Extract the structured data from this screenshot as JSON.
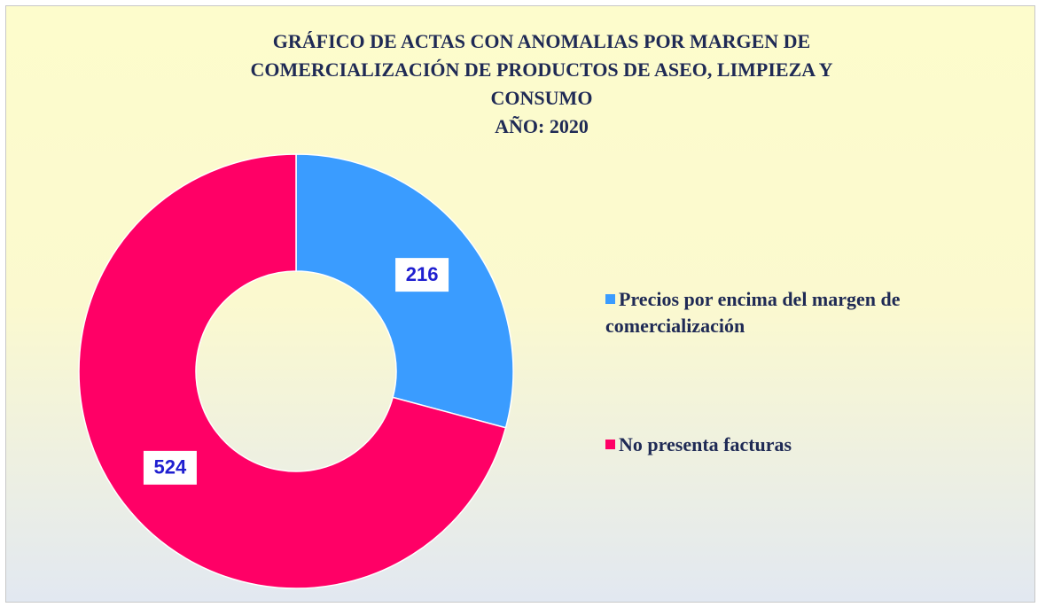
{
  "chart_data": {
    "type": "donut",
    "title": [
      "GRÁFICO DE ACTAS CON ANOMALIAS POR  MARGEN DE",
      "COMERCIALIZACIÓN DE PRODUCTOS DE ASEO, LIMPIEZA Y",
      "CONSUMO"
    ],
    "subtitle": "AÑO: 2020",
    "categories": [
      "Precios por encima del margen de comercialización",
      "No presenta facturas"
    ],
    "values": [
      216,
      524
    ],
    "colors": [
      "#3a9cff",
      "#ff0066"
    ],
    "legend": "right"
  }
}
